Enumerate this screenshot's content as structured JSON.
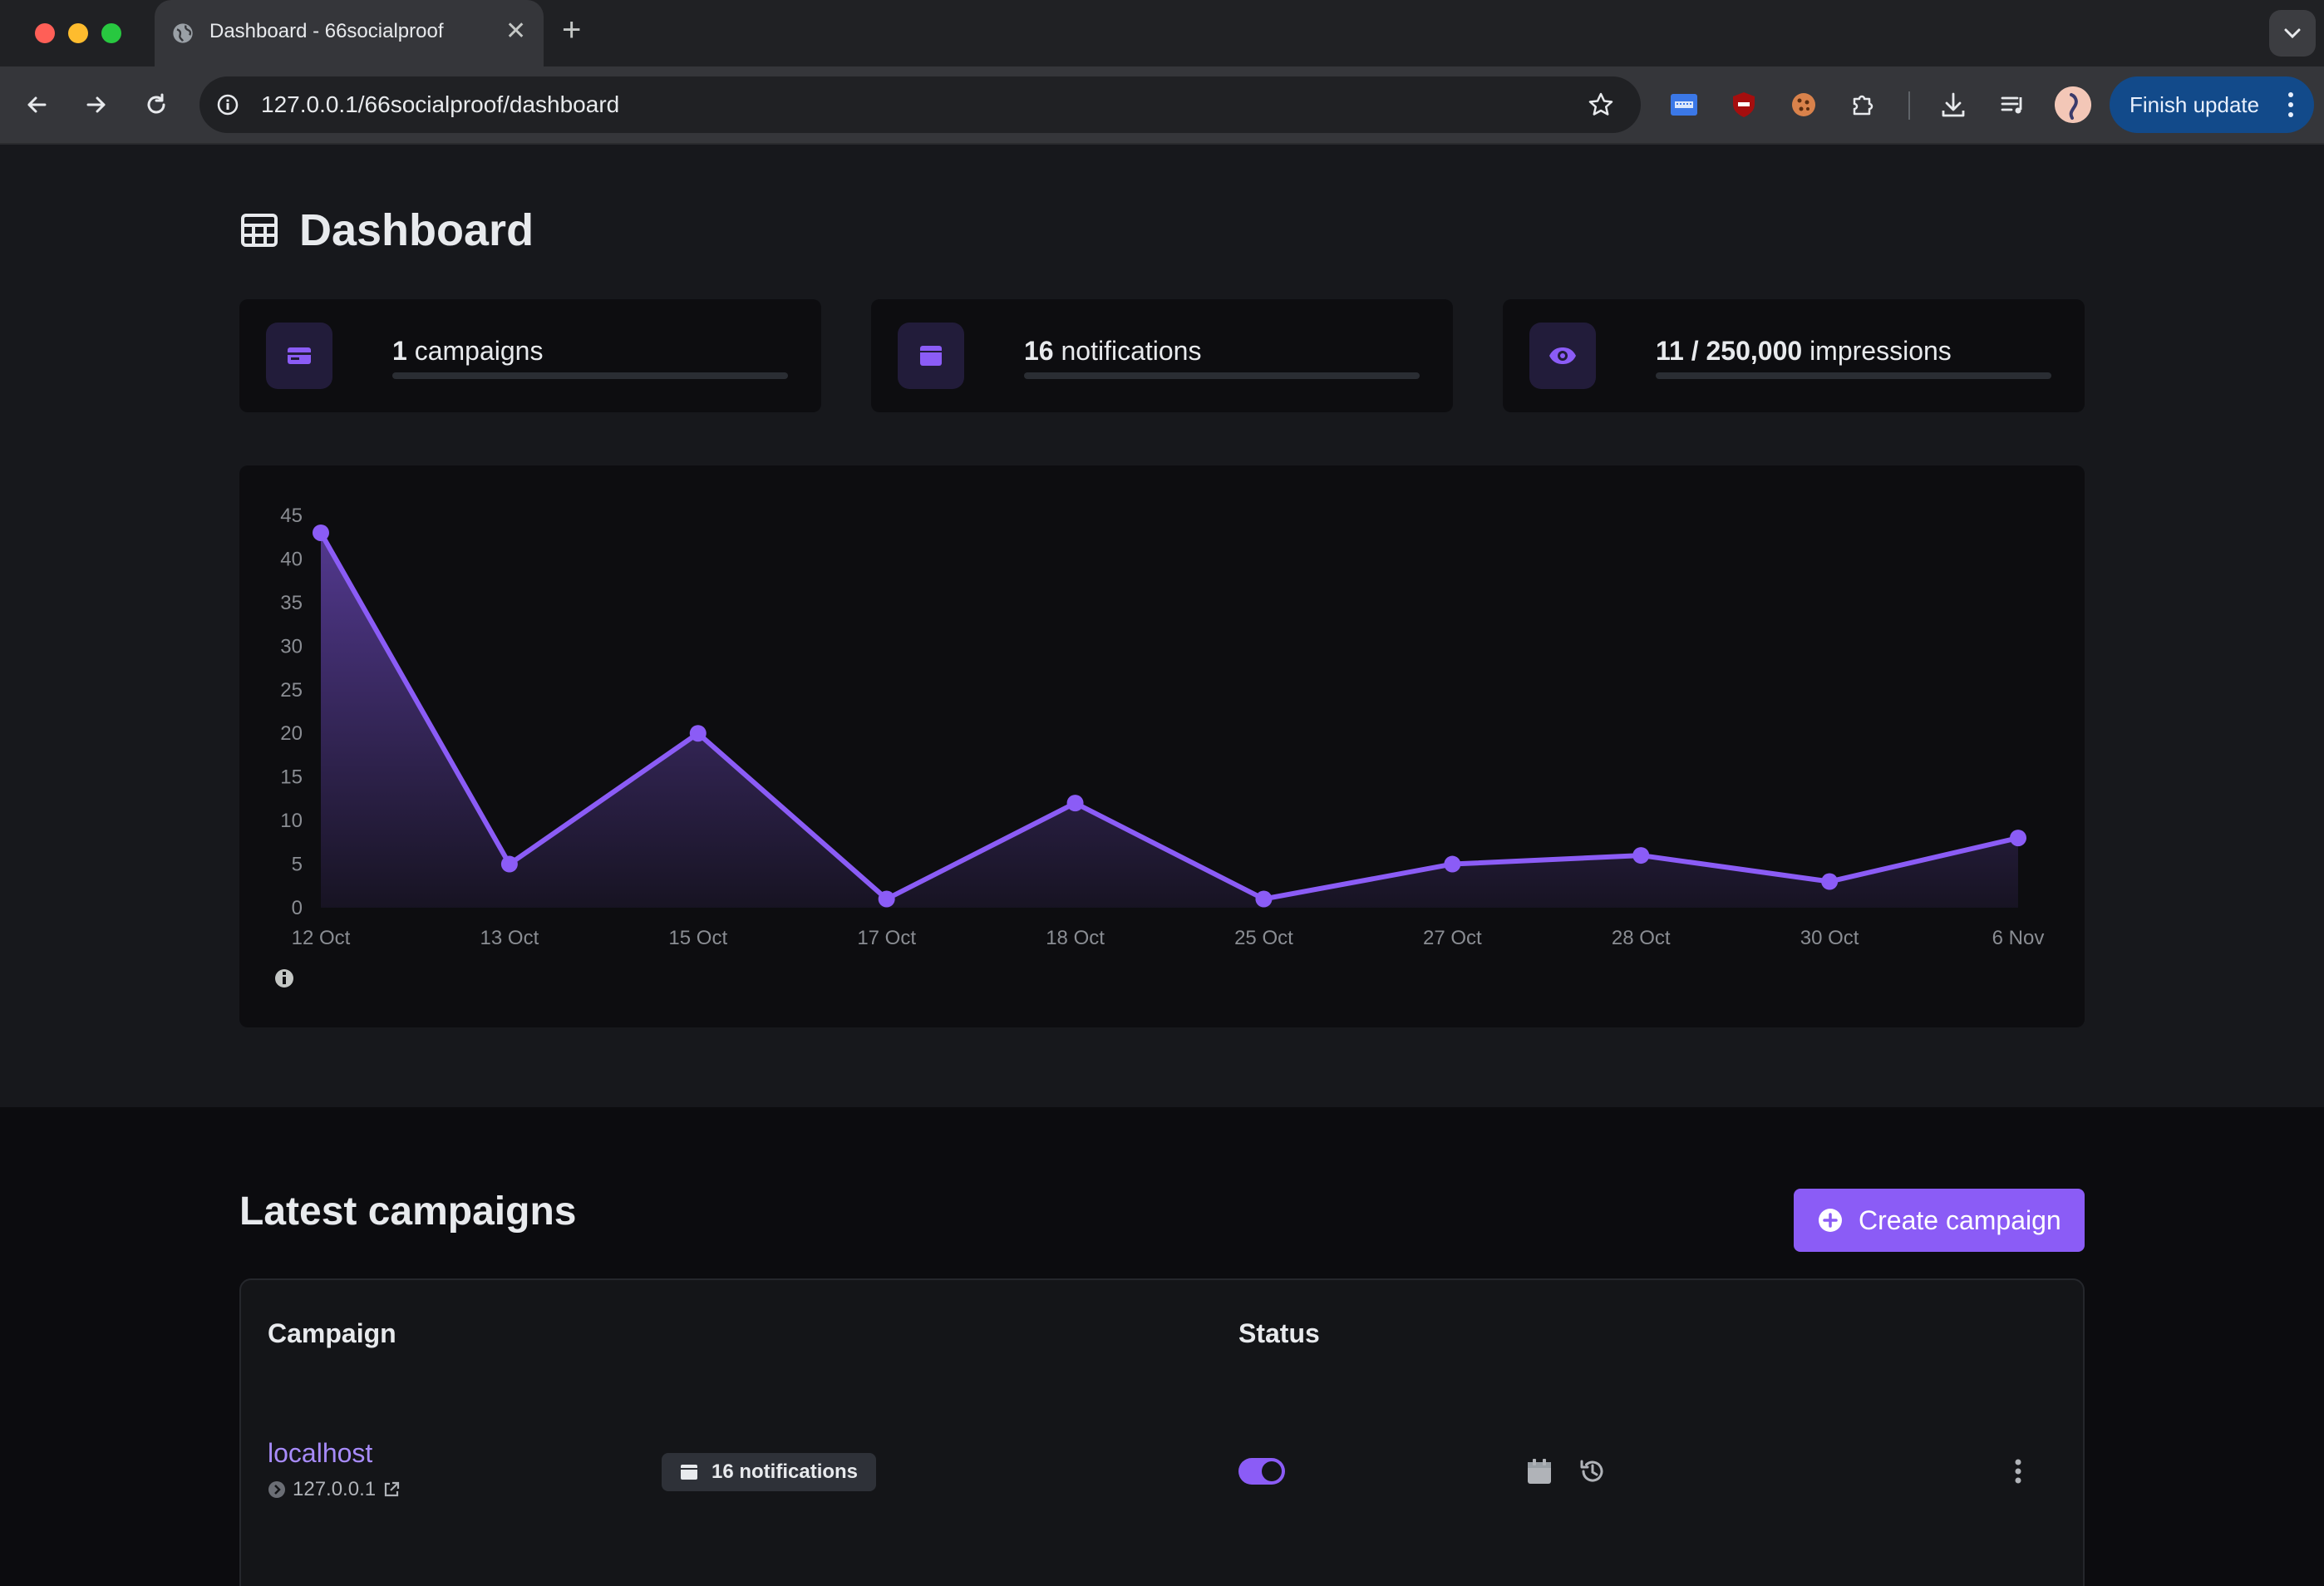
{
  "browser": {
    "tab_title": "Dashboard - 66socialproof",
    "url": "127.0.0.1/66socialproof/dashboard",
    "finish_update_label": "Finish update"
  },
  "dashboard": {
    "title": "Dashboard",
    "stats": [
      {
        "bold": "1",
        "label": " campaigns",
        "icon": "campaign-card-icon",
        "progress": 0
      },
      {
        "bold": "16",
        "label": " notifications",
        "icon": "notification-window-icon",
        "progress": 0
      },
      {
        "bold": "11 / 250,000",
        "label": " impressions",
        "icon": "eye-icon",
        "progress": 0
      }
    ]
  },
  "chart_data": {
    "type": "area",
    "categories": [
      "12 Oct",
      "13 Oct",
      "15 Oct",
      "17 Oct",
      "18 Oct",
      "25 Oct",
      "27 Oct",
      "28 Oct",
      "30 Oct",
      "6 Nov"
    ],
    "values": [
      43,
      5,
      20,
      1,
      12,
      1,
      5,
      6,
      3,
      8
    ],
    "ylim": [
      0,
      45
    ],
    "yticks": [
      0,
      5,
      10,
      15,
      20,
      25,
      30,
      35,
      40,
      45
    ],
    "xlabel": "",
    "ylabel": "",
    "color": "#8b5cf6",
    "grid": false
  },
  "campaigns": {
    "title": "Latest campaigns",
    "create_label": "Create campaign",
    "headers": {
      "campaign": "Campaign",
      "status": "Status"
    },
    "rows": [
      {
        "name": "localhost",
        "host": "127.0.0.1",
        "notifications": "16 notifications",
        "enabled": true
      }
    ]
  },
  "colors": {
    "accent": "#8b5cf6",
    "background": "#17181c",
    "card": "#0d0d10"
  }
}
